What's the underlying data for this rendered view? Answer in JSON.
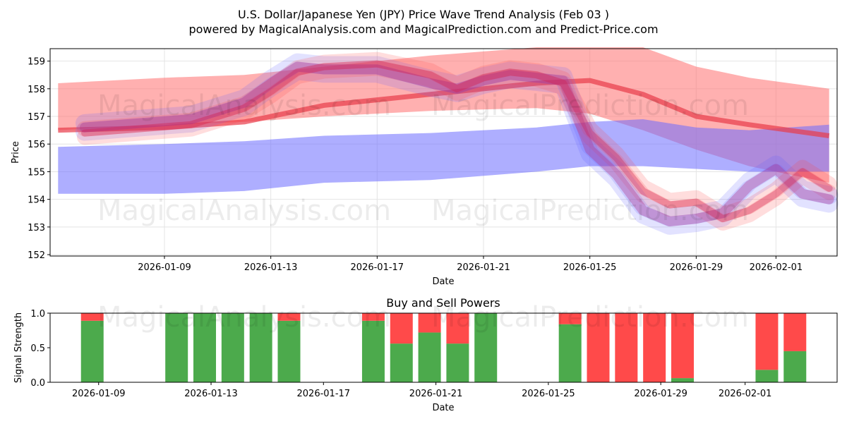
{
  "header": {
    "title_line1": "U.S. Dollar/Japanese Yen (JPY) Price Wave Trend Analysis (Feb 03 )",
    "title_line2": "powered by MagicalAnalysis.com and MagicalPrediction.com and Predict-Price.com"
  },
  "watermarks": [
    "MagicalAnalysis.com",
    "MagicalPrediction.com"
  ],
  "colors": {
    "buy": "#4caa4c",
    "sell": "#ff4a4a",
    "red_band": "#ff7070",
    "blue_band": "#6b6bff",
    "purple_band": "#9a5aa8"
  },
  "chart_data": [
    {
      "type": "area",
      "title": "",
      "xlabel": "Date",
      "ylabel": "Price",
      "ylim": [
        151.95,
        159.45
      ],
      "xlim_days": [
        -2.3,
        27.3
      ],
      "x_start_date": "2026-01-07",
      "x_ticks": [
        {
          "day": 2,
          "label": "2026-01-09"
        },
        {
          "day": 6,
          "label": "2026-01-13"
        },
        {
          "day": 10,
          "label": "2026-01-17"
        },
        {
          "day": 14,
          "label": "2026-01-21"
        },
        {
          "day": 18,
          "label": "2026-01-25"
        },
        {
          "day": 22,
          "label": "2026-01-29"
        },
        {
          "day": 25,
          "label": "2026-02-01"
        }
      ],
      "y_ticks": [
        152,
        153,
        154,
        155,
        156,
        157,
        158,
        159
      ],
      "grid": true,
      "series": [
        {
          "name": "red band upper",
          "x": [
            -2,
            0,
            2,
            5,
            8,
            12,
            16,
            18,
            20,
            22,
            24,
            27
          ],
          "values": [
            158.2,
            158.3,
            158.4,
            158.5,
            158.8,
            159.2,
            159.5,
            159.5,
            159.5,
            158.8,
            158.4,
            158.0
          ]
        },
        {
          "name": "red band lower",
          "x": [
            -2,
            0,
            2,
            5,
            8,
            12,
            16,
            18,
            20,
            22,
            24,
            27
          ],
          "values": [
            156.5,
            156.6,
            156.7,
            156.8,
            157.0,
            157.2,
            157.3,
            157.1,
            156.5,
            155.8,
            155.2,
            154.6
          ]
        },
        {
          "name": "red trend center",
          "x": [
            -2,
            2,
            5,
            8,
            12,
            16,
            18,
            20,
            22,
            24,
            27
          ],
          "values": [
            156.5,
            156.6,
            156.8,
            157.4,
            157.8,
            158.2,
            158.3,
            157.8,
            157.0,
            156.7,
            156.3
          ]
        },
        {
          "name": "blue band upper",
          "x": [
            -2,
            2,
            5,
            8,
            12,
            16,
            18,
            20,
            22,
            24,
            27
          ],
          "values": [
            155.9,
            156.0,
            156.1,
            156.3,
            156.4,
            156.6,
            156.8,
            156.9,
            156.6,
            156.5,
            156.7
          ]
        },
        {
          "name": "blue band lower",
          "x": [
            -2,
            2,
            5,
            8,
            12,
            16,
            18,
            20,
            22,
            24,
            27
          ],
          "values": [
            154.2,
            154.2,
            154.3,
            154.6,
            154.7,
            155.0,
            155.2,
            155.2,
            155.1,
            155.0,
            155.0
          ]
        },
        {
          "name": "wave path A",
          "x": [
            -1,
            3,
            5,
            6,
            7,
            8,
            10,
            12,
            13,
            14,
            15,
            16,
            17,
            18,
            19,
            20,
            21,
            22,
            23,
            24,
            25,
            26,
            27
          ],
          "values": [
            156.6,
            156.9,
            157.5,
            158.2,
            158.8,
            158.7,
            158.7,
            158.2,
            158.0,
            158.3,
            158.5,
            158.4,
            158.3,
            155.8,
            154.9,
            153.6,
            153.2,
            153.3,
            153.5,
            154.5,
            155.1,
            154.2,
            154.0
          ]
        },
        {
          "name": "wave path B",
          "x": [
            -1,
            3,
            5,
            6,
            7,
            8,
            10,
            12,
            13,
            14,
            15,
            16,
            17,
            18,
            19,
            20,
            21,
            22,
            23,
            24,
            25,
            26,
            27
          ],
          "values": [
            156.4,
            156.7,
            157.3,
            157.9,
            158.6,
            158.8,
            158.9,
            158.5,
            158.0,
            158.4,
            158.6,
            158.5,
            158.2,
            156.4,
            155.5,
            154.3,
            153.8,
            153.9,
            153.3,
            153.6,
            154.2,
            155.0,
            154.4
          ]
        }
      ]
    },
    {
      "type": "bar",
      "title": "Buy and Sell Powers",
      "xlabel": "Date",
      "ylabel": "Signal Strength",
      "ylim": [
        0,
        1.0
      ],
      "y_ticks": [
        0.0,
        0.5,
        1.0
      ],
      "y_tick_labels": [
        "0.0",
        "0.5",
        "1.0"
      ],
      "x_ticks": [
        {
          "day": 2,
          "label": "2026-01-09"
        },
        {
          "day": 6,
          "label": "2026-01-13"
        },
        {
          "day": 10,
          "label": "2026-01-17"
        },
        {
          "day": 14,
          "label": "2026-01-21"
        },
        {
          "day": 18,
          "label": "2026-01-25"
        },
        {
          "day": 22,
          "label": "2026-01-29"
        },
        {
          "day": 25,
          "label": "2026-02-01"
        }
      ],
      "bars": [
        {
          "day": 2,
          "buy": 0.89
        },
        {
          "day": 5,
          "buy": 1.0
        },
        {
          "day": 6,
          "buy": 1.0
        },
        {
          "day": 7,
          "buy": 1.0
        },
        {
          "day": 8,
          "buy": 1.0
        },
        {
          "day": 9,
          "buy": 0.89
        },
        {
          "day": 12,
          "buy": 0.89
        },
        {
          "day": 13,
          "buy": 0.56
        },
        {
          "day": 14,
          "buy": 0.72
        },
        {
          "day": 15,
          "buy": 0.56
        },
        {
          "day": 16,
          "buy": 1.0
        },
        {
          "day": 19,
          "buy": 0.84
        },
        {
          "day": 20,
          "buy": 0.0
        },
        {
          "day": 21,
          "buy": 0.0
        },
        {
          "day": 22,
          "buy": 0.0
        },
        {
          "day": 23,
          "buy": 0.06
        },
        {
          "day": 26,
          "buy": 0.18
        },
        {
          "day": 27,
          "buy": 0.45
        }
      ]
    }
  ]
}
